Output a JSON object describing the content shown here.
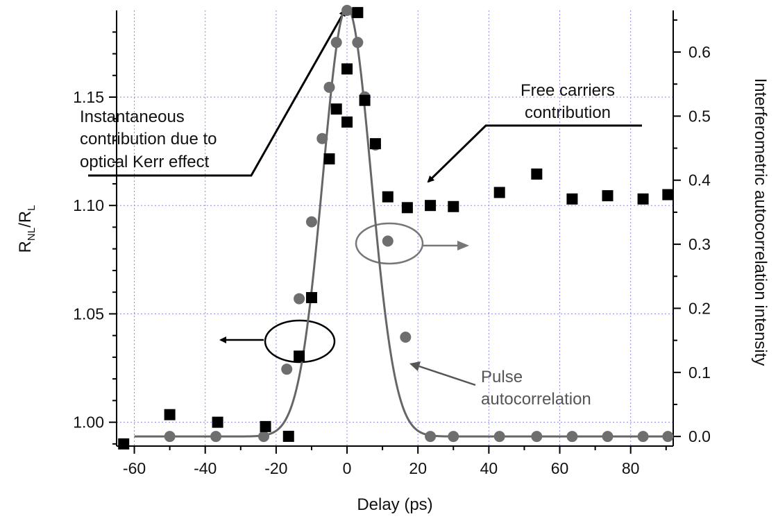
{
  "chart_data": {
    "type": "scatter",
    "xlabel": "Delay (ps)",
    "ylabel_left": {
      "base": "R",
      "sub1": "NL",
      "sep": "/R",
      "sub2": "L"
    },
    "ylabel_right": "Interferometric autocorrelation intensity",
    "xlim": [
      -65,
      92
    ],
    "ylim_left": [
      0.989,
      1.19
    ],
    "ylim_right": [
      -0.015,
      0.665
    ],
    "grid": true,
    "x_ticks": [
      -60,
      -40,
      -20,
      0,
      20,
      40,
      60,
      80
    ],
    "x_tick_labels": [
      "-60",
      "-40",
      "-20",
      "0",
      "20",
      "40",
      "60",
      "80"
    ],
    "y_left_ticks": [
      1.0,
      1.05,
      1.1,
      1.15
    ],
    "y_left_tick_labels": [
      "1.00",
      "1.05",
      "1.10",
      "1.15"
    ],
    "y_right_ticks": [
      0.0,
      0.1,
      0.2,
      0.3,
      0.4,
      0.5,
      0.6
    ],
    "y_right_tick_labels": [
      "0.0",
      "0.1",
      "0.2",
      "0.3",
      "0.4",
      "0.5",
      "0.6"
    ],
    "series": [
      {
        "marker": "square",
        "axis": "left",
        "color": "#000000",
        "x": [
          -63,
          -50,
          -36.5,
          -23,
          -16.5,
          -13.5,
          -10,
          -5,
          -3,
          0,
          0,
          3,
          5,
          8,
          11.5,
          17,
          23.5,
          30,
          43,
          53.5,
          63.5,
          73.5,
          83.5,
          90.5
        ],
        "y": [
          0.99,
          1.0035,
          1.0,
          0.998,
          0.9935,
          1.0305,
          1.0575,
          1.1215,
          1.1445,
          1.1385,
          1.163,
          1.189,
          1.1485,
          1.1285,
          1.104,
          1.099,
          1.1,
          1.0995,
          1.106,
          1.1145,
          1.103,
          1.1045,
          1.103,
          1.105
        ]
      },
      {
        "marker": "circle",
        "axis": "right",
        "color": "#6e6e6e",
        "x": [
          -50,
          -37,
          -23.5,
          -17,
          -13.5,
          -10,
          -7,
          -5,
          -3,
          0,
          3,
          5,
          8,
          11.5,
          16.5,
          23.5,
          30,
          43,
          53.5,
          63.5,
          73.5,
          83.5,
          90.5
        ],
        "y": [
          0.0,
          0.0,
          0.0,
          0.105,
          0.215,
          0.335,
          0.465,
          0.545,
          0.615,
          0.665,
          0.615,
          0.53,
          0.455,
          0.305,
          0.155,
          0.0,
          0.0,
          0.0,
          0.0,
          0.0,
          0.0,
          0.0,
          0.0
        ]
      }
    ],
    "fit_curve": {
      "axis": "right",
      "color": "#666666",
      "shape": "gaussian",
      "center": 0,
      "amplitude": 0.67,
      "sigma": 6.8,
      "x_range": [
        -60,
        90
      ]
    },
    "annotations": {
      "kerr": [
        "Instantaneous",
        "contribution due to",
        "optical Kerr effect"
      ],
      "free": [
        "Free carriers",
        "contribution"
      ],
      "pulse": [
        "Pulse",
        "autocorrelation"
      ]
    }
  }
}
